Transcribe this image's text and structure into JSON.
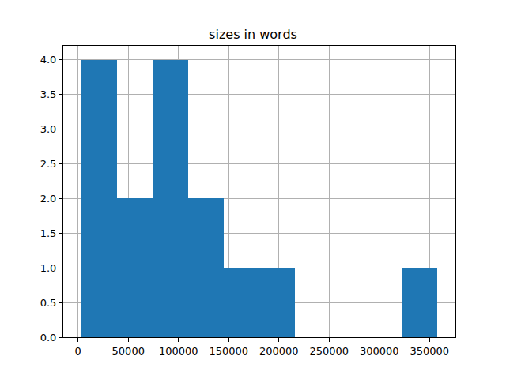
{
  "chart_data": {
    "type": "histogram",
    "title": "sizes in words",
    "bins": [
      3000,
      38500,
      74000,
      109500,
      145000,
      180500,
      216000,
      251500,
      287000,
      322500,
      358000
    ],
    "counts": [
      4,
      2,
      4,
      2,
      1,
      1,
      0,
      0,
      0,
      1
    ],
    "color": "#1f77b4",
    "xlim": [
      -14750,
      375750
    ],
    "xticks": [
      0,
      50000,
      100000,
      150000,
      200000,
      250000,
      300000,
      350000
    ],
    "ylim": [
      0,
      4.2
    ],
    "yticks": [
      {
        "value": 0,
        "label": "0.0"
      },
      {
        "value": 0.5,
        "label": "0.5"
      },
      {
        "value": 1,
        "label": "1.0"
      },
      {
        "value": 1.5,
        "label": "1.5"
      },
      {
        "value": 2,
        "label": "2.0"
      },
      {
        "value": 2.5,
        "label": "2.5"
      },
      {
        "value": 3,
        "label": "3.0"
      },
      {
        "value": 3.5,
        "label": "3.5"
      },
      {
        "value": 4,
        "label": "4.0"
      }
    ],
    "grid": true
  }
}
